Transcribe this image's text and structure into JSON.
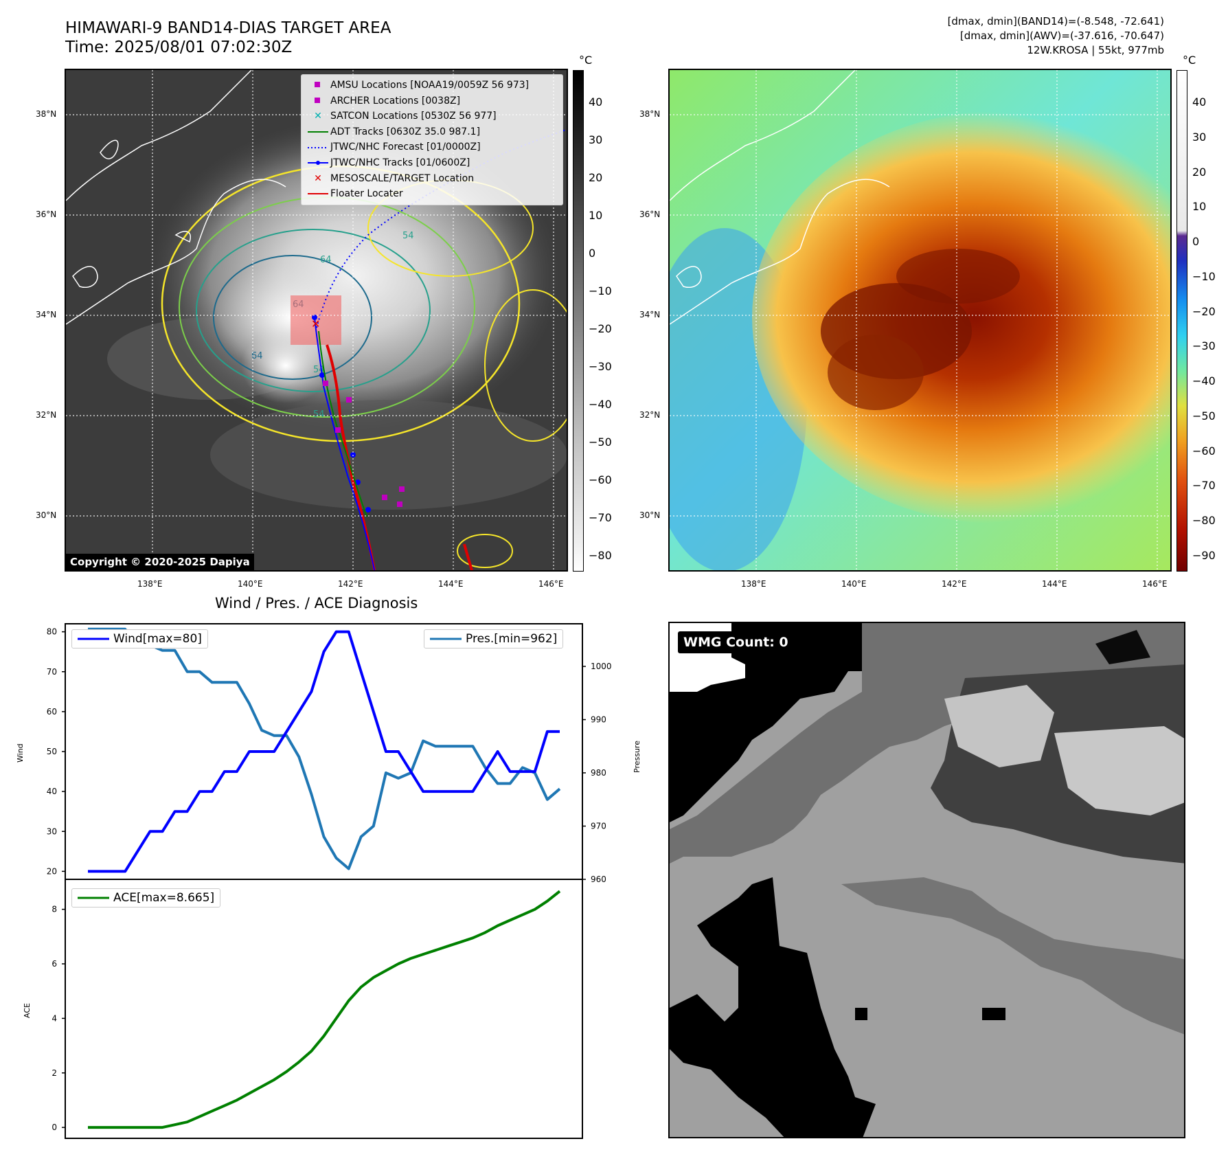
{
  "header": {
    "title_line1": "HIMAWARI-9 BAND14-DIAS TARGET AREA",
    "title_line2": "Time: 2025/08/01 07:02:30Z",
    "info_line1": "[dmax, dmin](BAND14)=(-8.548, -72.641)",
    "info_line2": "[dmax, dmin](AWV)=(-37.616, -70.647)",
    "info_line3": "12W.KROSA | 55kt, 977mb"
  },
  "map": {
    "lon_ticks": [
      "138°E",
      "140°E",
      "142°E",
      "144°E",
      "146°E"
    ],
    "lat_ticks": [
      "38°N",
      "36°N",
      "34°N",
      "32°N",
      "30°N"
    ],
    "copyright": "Copyright © 2020-2025 Dapiya"
  },
  "legend": {
    "amsu": "AMSU Locations [NOAA19/0059Z 56 973]",
    "archer": "ARCHER Locations [0038Z]",
    "satcon": "SATCON Locations [0530Z 56 977]",
    "adt": "ADT Tracks [0630Z 35.0 987.1]",
    "forecast": "JTWC/NHC Forecast [01/0000Z]",
    "tracks": "JTWC/NHC Tracks [01/0600Z]",
    "target": "MESOSCALE/TARGET Location",
    "floater": "Floater Locater"
  },
  "colorbar_left": {
    "unit": "°C",
    "ticks": [
      "40",
      "30",
      "20",
      "10",
      "0",
      "−10",
      "−20",
      "−30",
      "−40",
      "−50",
      "−60",
      "−70",
      "−80"
    ]
  },
  "colorbar_right": {
    "unit": "°C",
    "ticks": [
      "40",
      "30",
      "20",
      "10",
      "0",
      "−10",
      "−20",
      "−30",
      "−40",
      "−50",
      "−60",
      "−70",
      "−80",
      "−90"
    ]
  },
  "contour_labels": [
    "64",
    "54",
    "64",
    "54",
    "64",
    "54"
  ],
  "colors": {
    "wind": "#0000ff",
    "pressure": "#1f77b4",
    "ace": "#008000",
    "contour_yellow": "#f5e52a",
    "contour_green": "#7ccf4a",
    "contour_teal": "#26a08c",
    "contour_navy": "#1d6a8c"
  },
  "wmg": {
    "label": "WMG Count: 0"
  },
  "chart_data": [
    {
      "type": "line",
      "title": "Wind / Pres. / ACE Diagnosis",
      "ylabel": "Wind",
      "ylabel_right": "Pressure",
      "ylim": [
        18,
        82
      ],
      "ylim_right": [
        960,
        1008
      ],
      "yticks": [
        "80",
        "70",
        "60",
        "50",
        "40",
        "30",
        "20"
      ],
      "yticks_right": [
        "1000",
        "990",
        "980",
        "970",
        "960"
      ],
      "series": [
        {
          "name": "Wind[max=80]",
          "axis": "left",
          "values": [
            20,
            20,
            20,
            20,
            25,
            30,
            30,
            35,
            35,
            40,
            40,
            45,
            45,
            50,
            50,
            50,
            55,
            60,
            65,
            75,
            80,
            80,
            70,
            60,
            50,
            50,
            45,
            40,
            40,
            40,
            40,
            40,
            45,
            50,
            45,
            45,
            45,
            55,
            55
          ]
        },
        {
          "name": "Pres.[min=962]",
          "axis": "right",
          "values": [
            1007,
            1007,
            1007,
            1007,
            1004,
            1004,
            1003,
            1003,
            999,
            999,
            997,
            997,
            997,
            993,
            988,
            987,
            987,
            983,
            976,
            968,
            964,
            962,
            968,
            970,
            980,
            979,
            980,
            986,
            985,
            985,
            985,
            985,
            981,
            978,
            978,
            981,
            980,
            975,
            977
          ]
        }
      ]
    },
    {
      "type": "line",
      "ylabel": "ACE",
      "ylim": [
        -0.4,
        9.1
      ],
      "yticks": [
        "8",
        "6",
        "4",
        "2",
        "0"
      ],
      "series": [
        {
          "name": "ACE[max=8.665]",
          "values": [
            0,
            0,
            0,
            0,
            0,
            0,
            0,
            0.1,
            0.2,
            0.4,
            0.6,
            0.8,
            1.0,
            1.25,
            1.5,
            1.75,
            2.05,
            2.4,
            2.8,
            3.35,
            4.0,
            4.65,
            5.15,
            5.5,
            5.75,
            6.0,
            6.2,
            6.35,
            6.5,
            6.65,
            6.8,
            6.95,
            7.15,
            7.4,
            7.6,
            7.8,
            8.0,
            8.3,
            8.665
          ]
        }
      ]
    }
  ]
}
